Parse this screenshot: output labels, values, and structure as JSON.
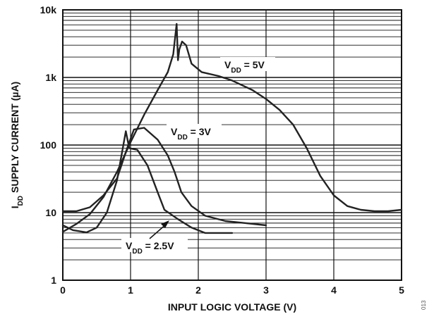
{
  "chart_data": {
    "type": "line",
    "xlabel": "INPUT LOGIC VOLTAGE (V)",
    "ylabel": {
      "prefix": "I",
      "subscript": "DD",
      "rest": " SUPPLY CURRENT (µA)"
    },
    "xlim": [
      0,
      5
    ],
    "ylim": [
      1,
      10000
    ],
    "yscale": "log",
    "grid": true,
    "x_ticks": [
      "0",
      "1",
      "2",
      "3",
      "4",
      "5"
    ],
    "y_ticks": [
      "1",
      "10",
      "100",
      "1k",
      "10k"
    ],
    "figure_id": "013",
    "series": [
      {
        "label": {
          "prefix": "V",
          "subscript": "DD",
          "rest": " = 5V"
        },
        "color": "#222222",
        "points": [
          [
            0,
            5.2
          ],
          [
            0.2,
            6.8
          ],
          [
            0.4,
            9.5
          ],
          [
            0.6,
            17
          ],
          [
            0.8,
            40
          ],
          [
            1.0,
            110
          ],
          [
            1.2,
            280
          ],
          [
            1.4,
            650
          ],
          [
            1.55,
            1200
          ],
          [
            1.63,
            2200
          ],
          [
            1.68,
            6200
          ],
          [
            1.7,
            1800
          ],
          [
            1.72,
            2600
          ],
          [
            1.76,
            3400
          ],
          [
            1.82,
            3000
          ],
          [
            1.9,
            1600
          ],
          [
            2.05,
            1200
          ],
          [
            2.3,
            1050
          ],
          [
            2.5,
            900
          ],
          [
            2.8,
            650
          ],
          [
            3.0,
            480
          ],
          [
            3.2,
            330
          ],
          [
            3.4,
            200
          ],
          [
            3.6,
            90
          ],
          [
            3.8,
            35
          ],
          [
            4.0,
            18
          ],
          [
            4.2,
            12.5
          ],
          [
            4.4,
            11
          ],
          [
            4.6,
            10.5
          ],
          [
            4.8,
            10.5
          ],
          [
            5.0,
            11
          ]
        ]
      },
      {
        "label": {
          "prefix": "V",
          "subscript": "DD",
          "rest": " = 3V"
        },
        "color": "#222222",
        "points": [
          [
            0,
            10.5
          ],
          [
            0.2,
            10.5
          ],
          [
            0.4,
            12
          ],
          [
            0.6,
            18
          ],
          [
            0.8,
            32
          ],
          [
            0.95,
            90
          ],
          [
            1.05,
            170
          ],
          [
            1.2,
            180
          ],
          [
            1.4,
            120
          ],
          [
            1.55,
            70
          ],
          [
            1.65,
            40
          ],
          [
            1.75,
            20
          ],
          [
            1.9,
            12.5
          ],
          [
            2.1,
            9
          ],
          [
            2.4,
            7.5
          ],
          [
            2.7,
            7
          ],
          [
            3.0,
            6.5
          ]
        ]
      },
      {
        "label": {
          "prefix": "V",
          "subscript": "DD",
          "rest": " = 2.5V"
        },
        "color": "#222222",
        "points": [
          [
            0,
            6.5
          ],
          [
            0.15,
            5.5
          ],
          [
            0.35,
            5.1
          ],
          [
            0.5,
            6
          ],
          [
            0.65,
            10
          ],
          [
            0.8,
            30
          ],
          [
            0.93,
            160
          ],
          [
            0.98,
            90
          ],
          [
            1.1,
            85
          ],
          [
            1.25,
            50
          ],
          [
            1.4,
            20
          ],
          [
            1.5,
            11
          ],
          [
            1.7,
            8
          ],
          [
            1.9,
            6
          ],
          [
            2.1,
            5
          ],
          [
            2.3,
            5
          ],
          [
            2.5,
            5
          ]
        ]
      }
    ]
  }
}
